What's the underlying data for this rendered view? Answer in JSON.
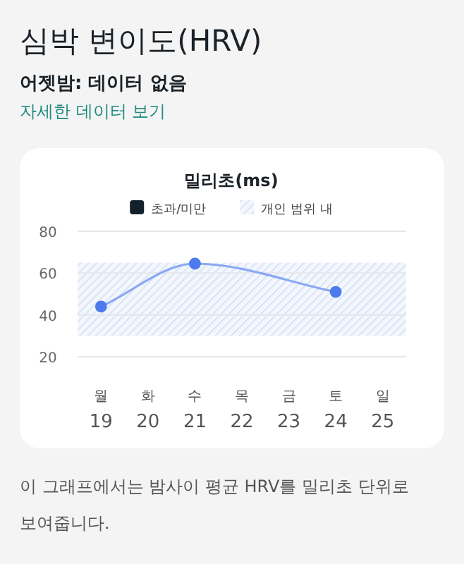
{
  "chart_data": {
    "type": "line",
    "title": "심박 변이도(HRV)",
    "subtitle": "어젯밤: 데이터 없음",
    "ylabel": "밀리초(ms)",
    "annotations": [
      "자세한 데이터 보기",
      "이 그래프에서는 밤사이 평균 HRV를 밀리초 단위로 보여줍니다."
    ],
    "categories": [
      "월\n19",
      "화\n20",
      "수\n21",
      "목\n22",
      "금\n23",
      "토\n24",
      "일\n25"
    ],
    "series": [
      {
        "name": "초과/미만",
        "color": "#14202b",
        "values": [
          null,
          null,
          null,
          null,
          null,
          null,
          null
        ]
      },
      {
        "color": "#4b7bec",
        "values": [
          44,
          null,
          64.5,
          null,
          null,
          51,
          null
        ]
      }
    ],
    "bands": [
      {
        "axis": "y",
        "from": 30,
        "to": 65,
        "label": "개인 범위 내",
        "color": "#c9d8f2"
      }
    ],
    "ylim": [
      20,
      80
    ],
    "yticks": [
      20,
      40,
      60,
      80
    ],
    "grid": "y",
    "legend": "top",
    "marker": "circle"
  }
}
